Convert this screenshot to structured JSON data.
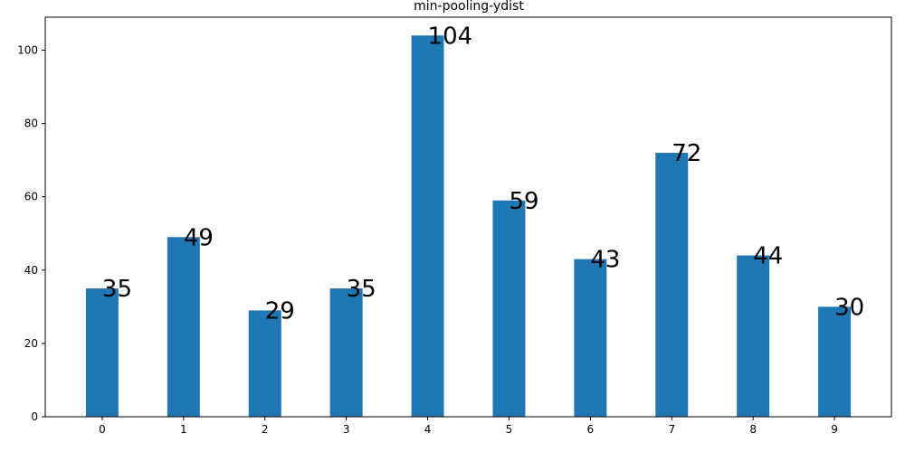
{
  "chart_data": {
    "type": "bar",
    "title": "min-pooling-ydist",
    "xlabel": "",
    "ylabel": "",
    "categories": [
      "0",
      "1",
      "2",
      "3",
      "4",
      "5",
      "6",
      "7",
      "8",
      "9"
    ],
    "values": [
      35,
      49,
      29,
      35,
      104,
      59,
      43,
      72,
      44,
      30
    ],
    "data_labels": [
      "35",
      "49",
      "29",
      "35",
      "104",
      "59",
      "43",
      "72",
      "44",
      "30"
    ],
    "ylim": [
      0,
      109
    ],
    "yticks": [
      0,
      20,
      40,
      60,
      80,
      100
    ],
    "ytick_labels": [
      "0",
      "20",
      "40",
      "60",
      "80",
      "100"
    ],
    "grid": false,
    "bar_color": "#1f77b4"
  }
}
